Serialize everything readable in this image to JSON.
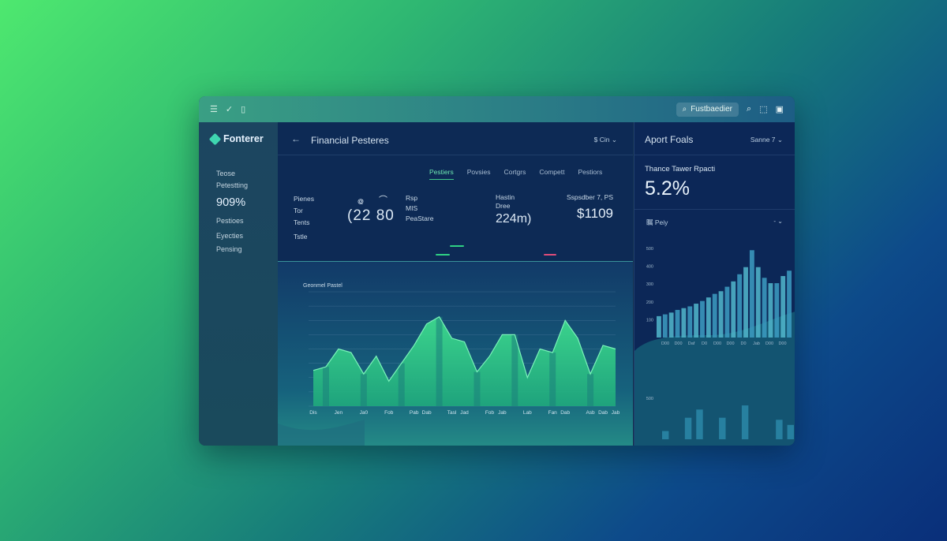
{
  "titlebar": {
    "menu_icon": "menu-icon",
    "check_icon": "check-icon",
    "panel_icon": "panel-icon",
    "search_text": "Fustbaedier",
    "search_icon": "search-icon",
    "share_icon": "share-icon",
    "clipboard_icon": "clipboard-icon"
  },
  "sidebar": {
    "brand": "Fonterer",
    "items": [
      {
        "label": "Teose"
      },
      {
        "label": "Petestting"
      },
      {
        "label": "909%"
      },
      {
        "label": "Pestioes"
      },
      {
        "label": "Eyecties"
      },
      {
        "label": "Pensing"
      }
    ]
  },
  "main": {
    "back": "←",
    "title": "Financial Pesteres",
    "menu": "$ Cin ⌄",
    "tabs": [
      "Pestiers",
      "Povsies",
      "Cortgrs",
      "Compett",
      "Pestiors"
    ],
    "stats": {
      "labels": [
        "Pienes",
        "Tor",
        "Tents",
        "Tstle"
      ],
      "number": "(22 80",
      "spiral": "᪤",
      "arc": "⌒",
      "mid_lines": [
        "Rsp",
        "MIS",
        "PeaStare"
      ],
      "col3_label": "Hastin",
      "col3_label2": "Dree",
      "col3_value": "224m)",
      "col4_label": "Sspsdber 7, PS",
      "col4_value": "$1109"
    },
    "chart_title": "Geonmel Pastel"
  },
  "right": {
    "title": "Aport Foals",
    "menu": "Sanne 7 ⌄",
    "label": "Thance Tawer Rpacti",
    "value": "5.2%",
    "sub_label": "瞩 Peiy",
    "sub_menu": "- ⌄"
  },
  "chart_data": [
    {
      "type": "area",
      "title": "Geonmel Pastel",
      "ylim": [
        0,
        160
      ],
      "x": [
        "Dis",
        "",
        "Jen",
        "",
        "Ja0",
        "",
        "Fob",
        "",
        "Pab",
        "Dab",
        "",
        "Tasl",
        "Jad",
        "",
        "Fob",
        "Jab",
        "",
        "Lab",
        "",
        "Fan",
        "Dab",
        "",
        "Asb",
        "Dab",
        "Jab"
      ],
      "values": [
        50,
        55,
        80,
        75,
        45,
        70,
        35,
        60,
        85,
        115,
        125,
        95,
        90,
        48,
        70,
        100,
        100,
        40,
        80,
        75,
        120,
        95,
        45,
        85,
        80
      ]
    },
    {
      "type": "bar",
      "ylim": [
        0,
        500
      ],
      "x_ticks": [
        "D00",
        "D00",
        "Daf",
        "D0",
        "D00",
        "D00",
        "D0",
        "Jab",
        "D00",
        "D00"
      ],
      "values": [
        120,
        130,
        140,
        155,
        165,
        175,
        190,
        205,
        225,
        245,
        260,
        285,
        315,
        355,
        395,
        490,
        395,
        335,
        305,
        305,
        345,
        375
      ],
      "secondary_values": [
        40,
        0,
        105,
        145,
        0,
        105,
        0,
        165,
        0,
        0,
        95,
        70
      ]
    }
  ]
}
